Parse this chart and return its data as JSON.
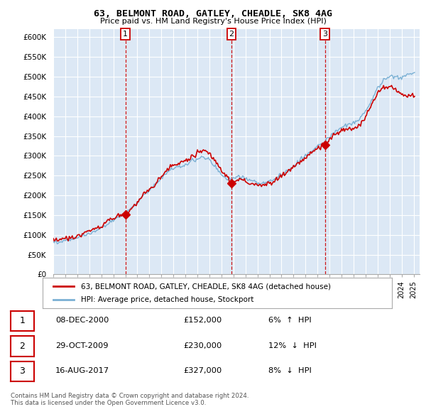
{
  "title": "63, BELMONT ROAD, GATLEY, CHEADLE, SK8 4AG",
  "subtitle": "Price paid vs. HM Land Registry's House Price Index (HPI)",
  "ylim": [
    0,
    620000
  ],
  "yticks": [
    0,
    50000,
    100000,
    150000,
    200000,
    250000,
    300000,
    350000,
    400000,
    450000,
    500000,
    550000,
    600000
  ],
  "ytick_labels": [
    "£0",
    "£50K",
    "£100K",
    "£150K",
    "£200K",
    "£250K",
    "£300K",
    "£350K",
    "£400K",
    "£450K",
    "£500K",
    "£550K",
    "£600K"
  ],
  "background_color": "#ffffff",
  "plot_bg_color": "#dce8f5",
  "grid_color": "#ffffff",
  "transactions": [
    {
      "label": "1",
      "year": 2001.0,
      "price": 152000,
      "date": "08-DEC-2000",
      "pct": "6%",
      "dir": "↑"
    },
    {
      "label": "2",
      "year": 2009.83,
      "price": 230000,
      "date": "29-OCT-2009",
      "pct": "12%",
      "dir": "↓"
    },
    {
      "label": "3",
      "year": 2017.62,
      "price": 327000,
      "date": "16-AUG-2017",
      "pct": "8%",
      "dir": "↓"
    }
  ],
  "vline_color": "#cc0000",
  "property_line_color": "#cc0000",
  "hpi_line_color": "#7ab0d4",
  "legend_label_property": "63, BELMONT ROAD, GATLEY, CHEADLE, SK8 4AG (detached house)",
  "legend_label_hpi": "HPI: Average price, detached house, Stockport",
  "footnote1": "Contains HM Land Registry data © Crown copyright and database right 2024.",
  "footnote2": "This data is licensed under the Open Government Licence v3.0.",
  "xmin": 1995,
  "xmax": 2025.5
}
